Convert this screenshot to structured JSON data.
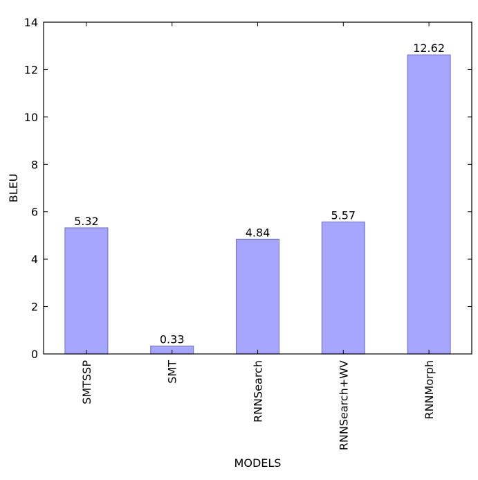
{
  "chart_data": {
    "type": "bar",
    "title": "",
    "xlabel": "MODELS",
    "ylabel": "BLEU",
    "categories": [
      "SMTSSP",
      "SMT",
      "RNNSearch",
      "RNNSearch+WV",
      "RNNMorph"
    ],
    "values": [
      5.32,
      0.33,
      4.84,
      5.57,
      12.62
    ],
    "value_labels": [
      "5.32",
      "0.33",
      "4.84",
      "5.57",
      "12.62"
    ],
    "ylim": [
      0,
      14
    ],
    "yticks": [
      "0",
      "2",
      "4",
      "6",
      "8",
      "10",
      "12",
      "14"
    ],
    "grid": false,
    "legend": "none",
    "colors": {
      "bar_fill": "#a6a6ff",
      "bar_stroke": "#7a7ac0",
      "axis": "#000000"
    }
  }
}
